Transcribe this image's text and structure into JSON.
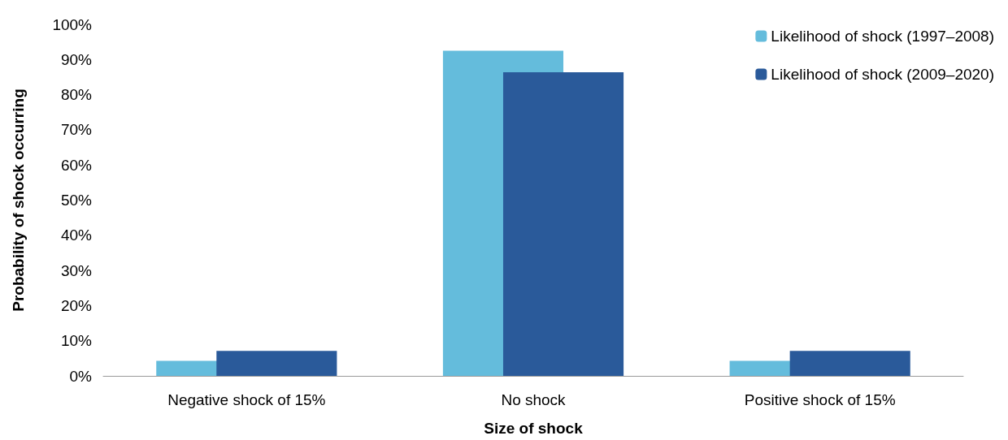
{
  "chart_data": {
    "type": "bar",
    "xlabel": "Size of shock",
    "ylabel": "Probability of shock occurring",
    "categories": [
      "Negative shock of 15%",
      "No shock",
      "Positive shock of 15%"
    ],
    "series": [
      {
        "name": "Likelihood of shock (1997–2008)",
        "color": "#64bcdc",
        "values": [
          4.3,
          92.5,
          4.3
        ]
      },
      {
        "name": "Likelihood of shock (2009–2020)",
        "color": "#2a5a9a",
        "values": [
          7.1,
          86.4,
          7.1
        ]
      }
    ],
    "ylim": [
      0,
      100
    ],
    "yticks": [
      {
        "value": 0,
        "label": "0%"
      },
      {
        "value": 10,
        "label": "10%"
      },
      {
        "value": 20,
        "label": "20%"
      },
      {
        "value": 30,
        "label": "30%"
      },
      {
        "value": 40,
        "label": "40%"
      },
      {
        "value": 50,
        "label": "50%"
      },
      {
        "value": 60,
        "label": "60%"
      },
      {
        "value": 70,
        "label": "70%"
      },
      {
        "value": 80,
        "label": "80%"
      },
      {
        "value": 90,
        "label": "90%"
      },
      {
        "value": 100,
        "label": "100%"
      }
    ],
    "grid": false,
    "legend": "top right"
  }
}
